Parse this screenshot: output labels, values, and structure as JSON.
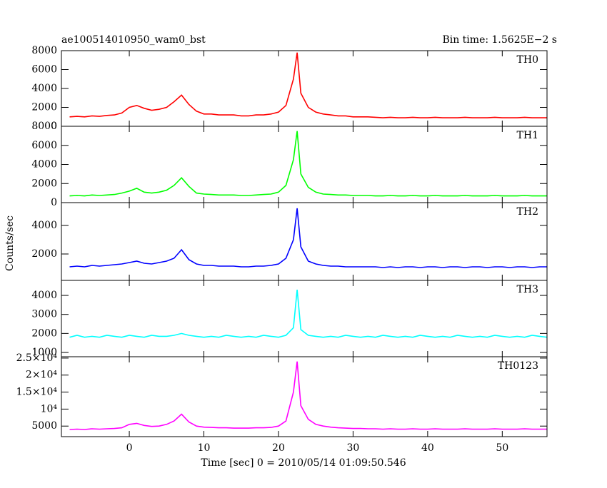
{
  "title": "ae100514010950_wam0_bst",
  "bin_time": "Bin time: 1.5625E−2 s",
  "ylabel": "Counts/sec",
  "xlabel": "Time [sec] 0 = 2010/05/14 01:09:50.546",
  "chart_data": [
    {
      "type": "line",
      "series": [
        {
          "name": "TH0",
          "color": "#ff0000",
          "values": [
            1000,
            1050,
            1000,
            1100,
            1050,
            1150,
            1200,
            1400,
            2000,
            2200,
            1900,
            1700,
            1800,
            2000,
            2600,
            3300,
            2300,
            1600,
            1300,
            1300,
            1200,
            1200,
            1200,
            1100,
            1100,
            1200,
            1200,
            1300,
            1500,
            2200,
            5000,
            7800,
            3500,
            2000,
            1500,
            1300,
            1200,
            1100,
            1100,
            1000,
            1000,
            1000,
            950,
            900,
            950,
            900,
            900,
            950,
            900,
            900,
            950,
            900,
            900,
            900,
            950,
            900,
            900,
            900,
            950,
            900,
            900,
            900,
            950,
            900,
            900,
            900
          ]
        }
      ],
      "ylim": [
        0,
        8000
      ],
      "yticks": [
        0,
        2000,
        4000,
        6000,
        8000
      ]
    },
    {
      "type": "line",
      "series": [
        {
          "name": "TH1",
          "color": "#00ff00",
          "values": [
            700,
            750,
            700,
            800,
            750,
            800,
            850,
            1000,
            1200,
            1500,
            1100,
            1000,
            1100,
            1300,
            1800,
            2600,
            1700,
            1000,
            900,
            850,
            800,
            800,
            800,
            750,
            750,
            800,
            850,
            900,
            1100,
            1800,
            4500,
            7500,
            3000,
            1600,
            1100,
            900,
            850,
            800,
            800,
            750,
            750,
            750,
            700,
            700,
            750,
            700,
            700,
            750,
            700,
            700,
            750,
            700,
            700,
            700,
            750,
            700,
            700,
            700,
            750,
            700,
            700,
            700,
            750,
            700,
            700,
            700
          ]
        }
      ],
      "ylim": [
        0,
        8000
      ],
      "yticks": [
        0,
        2000,
        4000,
        6000,
        8000
      ]
    },
    {
      "type": "line",
      "series": [
        {
          "name": "TH2",
          "color": "#0000ff",
          "values": [
            1100,
            1150,
            1100,
            1200,
            1150,
            1200,
            1250,
            1300,
            1400,
            1500,
            1350,
            1300,
            1400,
            1500,
            1700,
            2300,
            1600,
            1300,
            1200,
            1200,
            1150,
            1150,
            1150,
            1100,
            1100,
            1150,
            1150,
            1200,
            1300,
            1700,
            3000,
            5200,
            2500,
            1500,
            1300,
            1200,
            1150,
            1150,
            1100,
            1100,
            1100,
            1100,
            1100,
            1050,
            1100,
            1050,
            1100,
            1100,
            1050,
            1100,
            1100,
            1050,
            1100,
            1100,
            1050,
            1100,
            1100,
            1050,
            1100,
            1100,
            1050,
            1100,
            1100,
            1050,
            1100,
            1100
          ]
        }
      ],
      "ylim": [
        150,
        5600
      ],
      "yticks": [
        2000,
        4000
      ]
    },
    {
      "type": "line",
      "series": [
        {
          "name": "TH3",
          "color": "#00ffff",
          "values": [
            1800,
            1900,
            1800,
            1850,
            1800,
            1900,
            1850,
            1800,
            1900,
            1850,
            1800,
            1900,
            1850,
            1850,
            1900,
            2000,
            1900,
            1850,
            1800,
            1850,
            1800,
            1900,
            1850,
            1800,
            1850,
            1800,
            1900,
            1850,
            1800,
            1900,
            2300,
            4300,
            2200,
            1900,
            1850,
            1800,
            1850,
            1800,
            1900,
            1850,
            1800,
            1850,
            1800,
            1900,
            1850,
            1800,
            1850,
            1800,
            1900,
            1850,
            1800,
            1850,
            1800,
            1900,
            1850,
            1800,
            1850,
            1800,
            1900,
            1850,
            1800,
            1850,
            1800,
            1900,
            1850,
            1800
          ]
        }
      ],
      "ylim": [
        775,
        4790
      ],
      "yticks": [
        1000,
        2000,
        3000,
        4000
      ]
    },
    {
      "type": "line",
      "series": [
        {
          "name": "TH0123",
          "color": "#ff00ff",
          "values": [
            4000,
            4100,
            4000,
            4200,
            4100,
            4200,
            4300,
            4500,
            5500,
            5800,
            5200,
            4900,
            5000,
            5500,
            6500,
            8500,
            6200,
            5000,
            4700,
            4600,
            4500,
            4500,
            4400,
            4400,
            4400,
            4500,
            4500,
            4600,
            5000,
            6500,
            15000,
            24000,
            11000,
            7000,
            5500,
            5000,
            4700,
            4500,
            4400,
            4300,
            4300,
            4200,
            4200,
            4100,
            4200,
            4100,
            4100,
            4200,
            4100,
            4100,
            4200,
            4100,
            4100,
            4100,
            4200,
            4100,
            4100,
            4100,
            4200,
            4100,
            4100,
            4100,
            4200,
            4100,
            4100,
            4100
          ]
        }
      ],
      "ylim": [
        1900,
        25400
      ],
      "yticks": [
        5000,
        {
          "value": 10000,
          "label": "10⁴"
        },
        {
          "value": 15000,
          "label": "1.5×10⁴"
        },
        {
          "value": 20000,
          "label": "2×10⁴"
        },
        {
          "value": 25000,
          "label": "2.5×10⁴"
        }
      ],
      "x": [
        -8,
        -7,
        -6,
        -5,
        -4,
        -3,
        -2,
        -1,
        0,
        1,
        2,
        3,
        4,
        5,
        6,
        7,
        8,
        9,
        10,
        11,
        12,
        13,
        14,
        15,
        16,
        17,
        18,
        19,
        20,
        21,
        22,
        22.5,
        23,
        24,
        25,
        26,
        27,
        28,
        29,
        30,
        31,
        32,
        33,
        34,
        35,
        36,
        37,
        38,
        39,
        40,
        41,
        42,
        43,
        44,
        45,
        46,
        47,
        48,
        49,
        50,
        51,
        52,
        53,
        54,
        55,
        56
      ],
      "xlim": [
        -9.1,
        56
      ],
      "xticks": [
        0,
        10,
        20,
        30,
        40,
        50
      ]
    }
  ]
}
